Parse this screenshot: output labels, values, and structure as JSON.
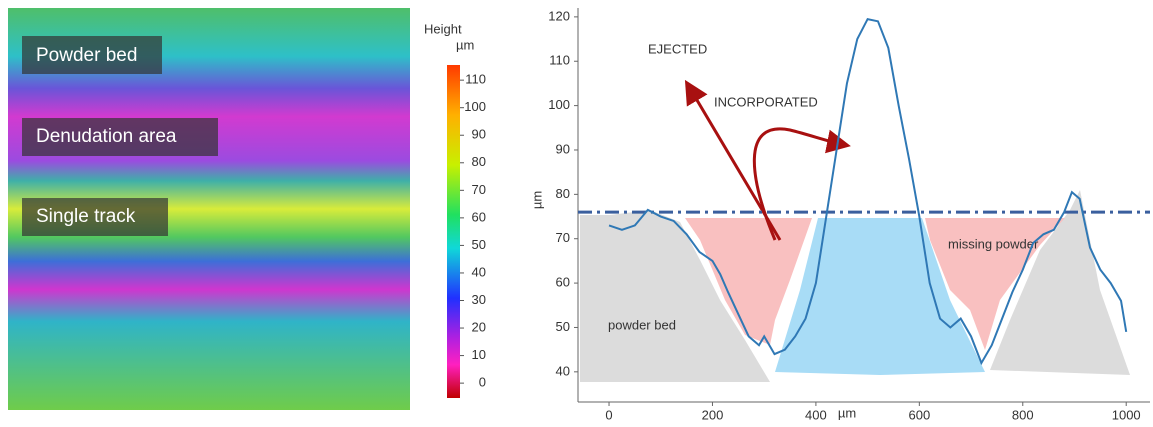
{
  "height_map": {
    "labels": [
      "Powder bed",
      "Denudation area",
      "Single track"
    ],
    "colorbar": {
      "title": "Height",
      "unit": "µm",
      "lim": [
        -5.4,
        115.5
      ],
      "ticks": [
        0,
        10,
        20,
        30,
        40,
        50,
        60,
        70,
        80,
        90,
        100,
        110
      ]
    }
  },
  "chart_data": {
    "type": "line",
    "xlabel": "µm",
    "ylabel": "µm",
    "xlim": [
      -60,
      1046
    ],
    "ylim": [
      33.2,
      122
    ],
    "xticks": [
      0,
      200,
      400,
      600,
      800,
      1000
    ],
    "yticks": [
      40,
      50,
      60,
      70,
      80,
      90,
      100,
      110,
      120
    ],
    "reference_line": 76,
    "annotations": [
      "EJECTED",
      "INCORPORATED",
      "missing powder",
      "powder bed"
    ],
    "series": [
      {
        "color": "#2f78b5",
        "x": [
          0,
          25,
          50,
          75,
          100,
          125,
          150,
          175,
          200,
          215,
          230,
          250,
          270,
          290,
          300,
          320,
          340,
          360,
          380,
          400,
          420,
          440,
          460,
          480,
          500,
          520,
          540,
          560,
          580,
          600,
          620,
          640,
          660,
          680,
          700,
          720,
          740,
          760,
          780,
          800,
          820,
          840,
          860,
          880,
          895,
          910,
          930,
          950,
          970,
          990,
          1000
        ],
        "values": [
          73,
          72,
          73,
          76.5,
          75,
          74,
          71,
          67,
          65,
          62,
          58,
          53,
          48,
          46,
          48,
          44,
          45,
          48,
          52,
          60,
          75,
          90,
          105,
          115,
          119.5,
          119,
          113,
          100,
          88,
          75,
          60,
          52,
          50,
          52,
          48,
          42,
          46,
          52,
          58,
          63,
          69,
          71,
          72,
          76,
          80.5,
          79,
          68,
          63,
          60,
          56,
          49
        ]
      }
    ]
  }
}
